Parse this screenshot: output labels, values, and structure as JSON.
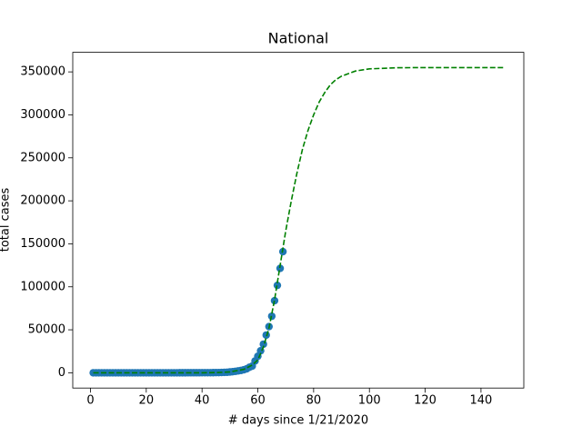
{
  "chart_data": {
    "type": "scatter",
    "title": "National",
    "xlabel": "# days since 1/21/2020",
    "ylabel": "total cases",
    "x": [
      1,
      2,
      3,
      4,
      5,
      6,
      7,
      8,
      9,
      10,
      11,
      12,
      13,
      14,
      15,
      16,
      17,
      18,
      19,
      20,
      21,
      22,
      23,
      24,
      25,
      26,
      27,
      28,
      29,
      30,
      31,
      32,
      33,
      34,
      35,
      36,
      37,
      38,
      39,
      40,
      41,
      42,
      43,
      44,
      45,
      46,
      47,
      48,
      49,
      50,
      51,
      52,
      53,
      54,
      55,
      56,
      57,
      58,
      59,
      60,
      61,
      62,
      63,
      64,
      65,
      66,
      67,
      68,
      69
    ],
    "values": [
      1,
      1,
      1,
      2,
      2,
      5,
      5,
      5,
      5,
      5,
      7,
      8,
      8,
      11,
      11,
      11,
      11,
      11,
      11,
      11,
      11,
      12,
      12,
      13,
      13,
      13,
      13,
      13,
      13,
      13,
      13,
      15,
      15,
      15,
      51,
      51,
      57,
      58,
      60,
      68,
      74,
      98,
      118,
      149,
      217,
      262,
      402,
      518,
      583,
      959,
      1281,
      1663,
      2179,
      2727,
      3499,
      4632,
      6421,
      7783,
      13747,
      19273,
      25600,
      33276,
      43847,
      53740,
      65778,
      83836,
      101657,
      121465,
      140909
    ],
    "color": "#1f77b4",
    "fit": {
      "x": [
        1,
        10,
        20,
        30,
        40,
        45,
        50,
        55,
        58,
        60,
        62,
        64,
        66,
        68,
        70,
        72,
        74,
        76,
        78,
        80,
        82,
        84,
        86,
        88,
        90,
        95,
        100,
        110,
        120,
        130,
        148
      ],
      "values": [
        0,
        0,
        0,
        0,
        0,
        200,
        1000,
        4000,
        9000,
        15000,
        30000,
        52000,
        85000,
        125000,
        165000,
        200000,
        232000,
        260000,
        282000,
        300000,
        315000,
        326000,
        335000,
        341000,
        345000,
        351000,
        353500,
        354800,
        355000,
        355000,
        355000
      ],
      "color": "#008000",
      "style": "dashed"
    },
    "xlim": [
      -6.35,
      155.35
    ],
    "ylim": [
      -17750,
      372750
    ],
    "xticks": [
      0,
      20,
      40,
      60,
      80,
      100,
      120,
      140
    ],
    "yticks": [
      0,
      50000,
      100000,
      150000,
      200000,
      250000,
      300000,
      350000
    ]
  }
}
